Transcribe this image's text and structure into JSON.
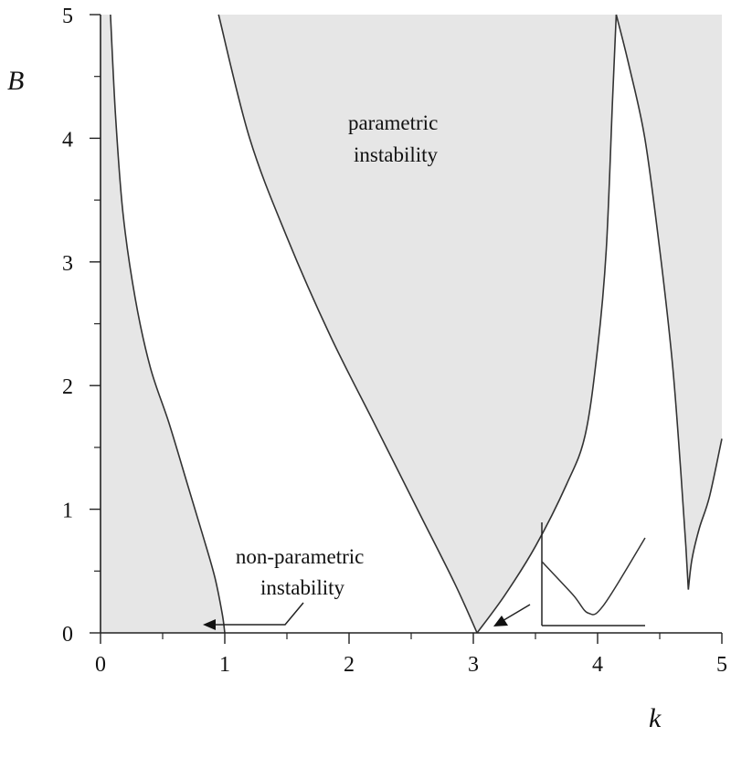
{
  "chart_data": {
    "type": "area",
    "xlabel": "k",
    "ylabel": "B",
    "xlim": [
      0,
      5
    ],
    "ylim": [
      0,
      5
    ],
    "x_ticks": [
      "0",
      "1",
      "2",
      "3",
      "4",
      "5"
    ],
    "y_ticks": [
      "0",
      "1",
      "2",
      "3",
      "4",
      "5"
    ],
    "grid": false,
    "fill_color": "#e6e6e6",
    "line_color": "#333333",
    "regions": [
      {
        "label_lines": [
          "non-parametric",
          "instability"
        ],
        "boundary": [
          [
            0.08,
            5
          ],
          [
            0.12,
            4.2
          ],
          [
            0.18,
            3.4
          ],
          [
            0.28,
            2.7
          ],
          [
            0.4,
            2.15
          ],
          [
            0.55,
            1.7
          ],
          [
            0.7,
            1.2
          ],
          [
            0.82,
            0.8
          ],
          [
            0.92,
            0.45
          ],
          [
            0.98,
            0.15
          ],
          [
            1.0,
            0
          ]
        ]
      },
      {
        "label_lines": [
          "parametric",
          "instability"
        ],
        "left_boundary": [
          [
            0.95,
            5
          ],
          [
            1.2,
            4.0
          ],
          [
            1.5,
            3.2
          ],
          [
            1.85,
            2.4
          ],
          [
            2.2,
            1.7
          ],
          [
            2.55,
            1.0
          ],
          [
            2.85,
            0.4
          ],
          [
            3.03,
            0.0
          ]
        ],
        "right_boundary": [
          [
            3.03,
            0.0
          ],
          [
            3.25,
            0.3
          ],
          [
            3.5,
            0.7
          ],
          [
            3.75,
            1.2
          ],
          [
            3.9,
            1.6
          ],
          [
            4.0,
            2.3
          ],
          [
            4.07,
            3.1
          ],
          [
            4.12,
            4.3
          ],
          [
            4.15,
            5.0
          ]
        ]
      },
      {
        "label_lines": [],
        "left_boundary": [
          [
            4.15,
            5.0
          ],
          [
            4.25,
            4.6
          ],
          [
            4.38,
            4.0
          ],
          [
            4.5,
            3.1
          ],
          [
            4.6,
            2.2
          ],
          [
            4.67,
            1.3
          ],
          [
            4.71,
            0.7
          ],
          [
            4.73,
            0.35
          ]
        ],
        "right_boundary": [
          [
            4.73,
            0.35
          ],
          [
            4.76,
            0.6
          ],
          [
            4.82,
            0.85
          ],
          [
            4.9,
            1.1
          ],
          [
            5.0,
            1.57
          ]
        ]
      }
    ],
    "inset": {
      "description_shape": "V-shaped minimum near k≈3.05, B≈0",
      "curve": [
        [
          0,
          0.62
        ],
        [
          0.3,
          0.3
        ],
        [
          0.45,
          0.12
        ],
        [
          0.6,
          0.2
        ],
        [
          1.0,
          0.85
        ]
      ]
    }
  }
}
